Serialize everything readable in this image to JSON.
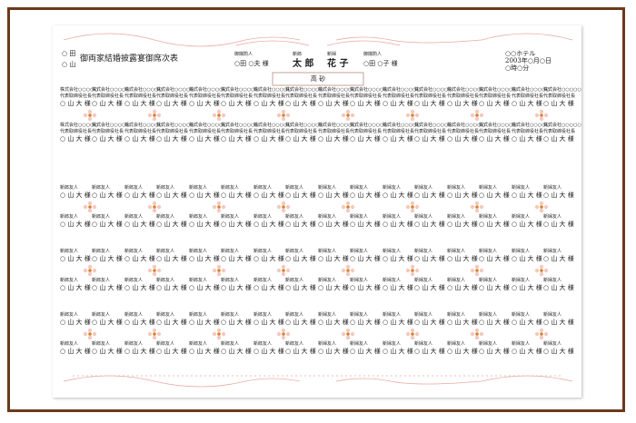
{
  "header": {
    "families": [
      "○ 田",
      "○ 山"
    ],
    "title": "御両家結婚披露宴御席次表",
    "nakodo_left": {
      "role": "御媒酌人",
      "name": "○田 ○夫 様"
    },
    "groom": {
      "role": "新郎",
      "name": "太 郎"
    },
    "bride": {
      "role": "新婦",
      "name": "花 子"
    },
    "nakodo_right": {
      "role": "御媒酌人",
      "name": "○田 ○子 様"
    },
    "venue": "○○ホテル",
    "date": "2003年○月○日",
    "time": "○時○分",
    "head_table": "高 砂"
  },
  "bands": [
    [
      [
        [
          "株式会社○○○○○",
          "代表取締役社長",
          "○ 山 大 様"
        ],
        [
          "株式会社○○○○○",
          "代表取締役社長",
          "○ 山 大 様"
        ],
        [
          "株式会社○○○○○",
          "代表取締役社長",
          "○ 山 大 様"
        ],
        [
          "株式会社○○○○○",
          "代表取締役社長",
          "○ 山 大 様"
        ]
      ],
      [
        [
          "株式会社○○○○○",
          "代表取締役社長",
          "○ 山 大 様"
        ],
        [
          "株式会社○○○○○",
          "代表取締役社長",
          "○ 山 大 様"
        ],
        [
          "株式会社○○○○○",
          "代表取締役社長",
          "○ 山 大 様"
        ],
        [
          "株式会社○○○○○",
          "代表取締役社長",
          "○ 山 大 様"
        ]
      ],
      [
        [
          "株式会社○○○○○",
          "代表取締役社長",
          "○ 山 大 様"
        ],
        [
          "株式会社○○○○○",
          "代表取締役社長",
          "○ 山 大 様"
        ],
        [
          "株式会社○○○○○",
          "代表取締役社長",
          "○ 山 大 様"
        ],
        [
          "株式会社○○○○○",
          "代表取締役社長",
          "○ 山 大 様"
        ]
      ],
      [
        [
          "株式会社○○○○○",
          "代表取締役社長",
          "○ 山 大 様"
        ],
        [
          "株式会社○○○○○",
          "代表取締役社長",
          "○ 山 大 様"
        ],
        [
          "株式会社○○○○○",
          "代表取締役社長",
          "○ 山 大 様"
        ],
        [
          "株式会社○○○○○",
          "代表取締役社長",
          "○ 山 大 様"
        ]
      ],
      [
        [
          "株式会社○○○○○",
          "代表取締役社長",
          "○ 山 大 様"
        ],
        [
          "株式会社○○○○○",
          "代表取締役社長",
          "○ 山 大 様"
        ],
        [
          "株式会社○○○○○",
          "代表取締役社長",
          "○ 山 大 様"
        ],
        [
          "株式会社○○○○○",
          "代表取締役社長",
          "○ 山 大 様"
        ]
      ],
      [
        [
          "株式会社○○○○○",
          "代表取締役社長",
          "○ 山 大 様"
        ],
        [
          "株式会社○○○○○",
          "代表取締役社長",
          "○ 山 大 様"
        ],
        [
          "株式会社○○○○○",
          "代表取締役社長",
          "○ 山 大 様"
        ],
        [
          "株式会社○○○○○",
          "代表取締役社長",
          "○ 山 大 様"
        ]
      ],
      [
        [
          "株式会社○○○○○",
          "代表取締役社長",
          "○ 山 大 様"
        ],
        [
          "株式会社○○○○○",
          "代表取締役社長",
          "○ 山 大 様"
        ],
        [
          "株式会社○○○○○",
          "代表取締役社長",
          "○ 山 大 様"
        ],
        [
          "株式会社○○○○○",
          "代表取締役社長",
          "○ 山 大 様"
        ]
      ],
      [
        [
          "株式会社○○○○○",
          "代表取締役社長",
          "○ 山 大 様"
        ],
        [
          "株式会社○○○○○",
          "代表取締役社長",
          "○ 山 大 様"
        ],
        [
          "株式会社○○○○○",
          "代表取締役社長",
          "○ 山 大 様"
        ],
        [
          "株式会社○○○○○",
          "代表取締役社長",
          "○ 山 大 様"
        ]
      ]
    ],
    [
      [
        [
          "新郎友人",
          "○ 山 大 様"
        ],
        [
          "新郎友人",
          "○ 山 大 様"
        ],
        [
          "新郎友人",
          "○ 山 大 様"
        ],
        [
          "新郎友人",
          "○ 山 大 様"
        ]
      ],
      [
        [
          "新郎友人",
          "○ 山 大 様"
        ],
        [
          "新郎友人",
          "○ 山 大 様"
        ],
        [
          "新郎友人",
          "○ 山 大 様"
        ],
        [
          "新郎友人",
          "○ 山 大 様"
        ]
      ],
      [
        [
          "新郎友人",
          "○ 山 大 様"
        ],
        [
          "新郎友人",
          "○ 山 大 様"
        ],
        [
          "新郎友人",
          "○ 山 大 様"
        ],
        [
          "新郎友人",
          "○ 山 大 様"
        ]
      ],
      [
        [
          "新郎友人",
          "○ 山 大 様"
        ],
        [
          "新郎友人",
          "○ 山 大 様"
        ],
        [
          "新郎友人",
          "○ 山 大 様"
        ],
        [
          "新郎友人",
          "○ 山 大 様"
        ]
      ],
      [
        [
          "新婦友人",
          "○ 山 大 様"
        ],
        [
          "新婦友人",
          "○ 山 大 様"
        ],
        [
          "新婦友人",
          "○ 山 大 様"
        ],
        [
          "新婦友人",
          "○ 山 大 様"
        ]
      ],
      [
        [
          "新婦友人",
          "○ 山 大 様"
        ],
        [
          "新婦友人",
          "○ 山 大 様"
        ],
        [
          "新婦友人",
          "○ 山 大 様"
        ],
        [
          "新婦友人",
          "○ 山 大 様"
        ]
      ],
      [
        [
          "新婦友人",
          "○ 山 大 様"
        ],
        [
          "新婦友人",
          "○ 山 大 様"
        ],
        [
          "新婦友人",
          "○ 山 大 様"
        ],
        [
          "新婦友人",
          "○ 山 大 様"
        ]
      ],
      [
        [
          "新婦友人",
          "○ 山 大 様"
        ],
        [
          "新婦友人",
          "○ 山 大 様"
        ],
        [
          "新婦友人",
          "○ 山 大 様"
        ],
        [
          "新婦友人",
          "○ 山 大 様"
        ]
      ]
    ],
    [
      [
        [
          "新郎友人",
          "○ 山 大 様"
        ],
        [
          "新郎友人",
          "○ 山 大 様"
        ],
        [
          "新郎友人",
          "○ 山 大 様"
        ],
        [
          "新郎友人",
          "○ 山 大 様"
        ]
      ],
      [
        [
          "新郎友人",
          "○ 山 大 様"
        ],
        [
          "新郎友人",
          "○ 山 大 様"
        ],
        [
          "新郎友人",
          "○ 山 大 様"
        ],
        [
          "新郎友人",
          "○ 山 大 様"
        ]
      ],
      [
        [
          "新郎友人",
          "○ 山 大 様"
        ],
        [
          "新郎友人",
          "○ 山 大 様"
        ],
        [
          "新郎友人",
          "○ 山 大 様"
        ],
        [
          "新郎友人",
          "○ 山 大 様"
        ]
      ],
      [
        [
          "新郎友人",
          "○ 山 大 様"
        ],
        [
          "新郎友人",
          "○ 山 大 様"
        ],
        [
          "新郎友人",
          "○ 山 大 様"
        ],
        [
          "新郎友人",
          "○ 山 大 様"
        ]
      ],
      [
        [
          "新婦友人",
          "○ 山 大 様"
        ],
        [
          "新婦友人",
          "○ 山 大 様"
        ],
        [
          "新婦友人",
          "○ 山 大 様"
        ],
        [
          "新婦友人",
          "○ 山 大 様"
        ]
      ],
      [
        [
          "新婦友人",
          "○ 山 大 様"
        ],
        [
          "新婦友人",
          "○ 山 大 様"
        ],
        [
          "新婦友人",
          "○ 山 大 様"
        ],
        [
          "新婦友人",
          "○ 山 大 様"
        ]
      ],
      [
        [
          "新婦友人",
          "○ 山 大 様"
        ],
        [
          "新婦友人",
          "○ 山 大 様"
        ],
        [
          "新婦友人",
          "○ 山 大 様"
        ],
        [
          "新婦友人",
          "○ 山 大 様"
        ]
      ],
      [
        [
          "新婦友人",
          "○ 山 大 様"
        ],
        [
          "新婦友人",
          "○ 山 大 様"
        ],
        [
          "新婦友人",
          "○ 山 大 様"
        ],
        [
          "新婦友人",
          "○ 山 大 様"
        ]
      ]
    ],
    [
      [
        [
          "新郎友人",
          "○ 山 大 様"
        ],
        [
          "新郎友人",
          "○ 山 大 様"
        ],
        [
          "新郎友人",
          "○ 山 大 様"
        ],
        [
          "新郎友人",
          "○ 山 大 様"
        ]
      ],
      [
        [
          "新郎友人",
          "○ 山 大 様"
        ],
        [
          "新郎友人",
          "○ 山 大 様"
        ],
        [
          "新郎友人",
          "○ 山 大 様"
        ],
        [
          "新郎友人",
          "○ 山 大 様"
        ]
      ],
      [
        [
          "新郎友人",
          "○ 山 大 様"
        ],
        [
          "新郎友人",
          "○ 山 大 様"
        ],
        [
          "新郎友人",
          "○ 山 大 様"
        ],
        [
          "新郎友人",
          "○ 山 大 様"
        ]
      ],
      [
        [
          "新郎友人",
          "○ 山 大 様"
        ],
        [
          "新郎友人",
          "○ 山 大 様"
        ],
        [
          "新郎友人",
          "○ 山 大 様"
        ],
        [
          "新郎友人",
          "○ 山 大 様"
        ]
      ],
      [
        [
          "新婦友人",
          "○ 山 大 様"
        ],
        [
          "新婦友人",
          "○ 山 大 様"
        ],
        [
          "新婦友人",
          "○ 山 大 様"
        ],
        [
          "新婦友人",
          "○ 山 大 様"
        ]
      ],
      [
        [
          "新婦友人",
          "○ 山 大 様"
        ],
        [
          "新婦友人",
          "○ 山 大 様"
        ],
        [
          "新婦友人",
          "○ 山 大 様"
        ],
        [
          "新婦友人",
          "○ 山 大 様"
        ]
      ],
      [
        [
          "新婦友人",
          "○ 山 大 様"
        ],
        [
          "新婦友人",
          "○ 山 大 様"
        ],
        [
          "新婦友人",
          "○ 山 大 様"
        ],
        [
          "新婦友人",
          "○ 山 大 様"
        ]
      ],
      [
        [
          "新婦友人",
          "○ 山 大 様"
        ],
        [
          "新婦友人",
          "○ 山 大 様"
        ],
        [
          "新婦友人",
          "○ 山 大 様"
        ],
        [
          "新婦友人",
          "○ 山 大 様"
        ]
      ]
    ]
  ]
}
